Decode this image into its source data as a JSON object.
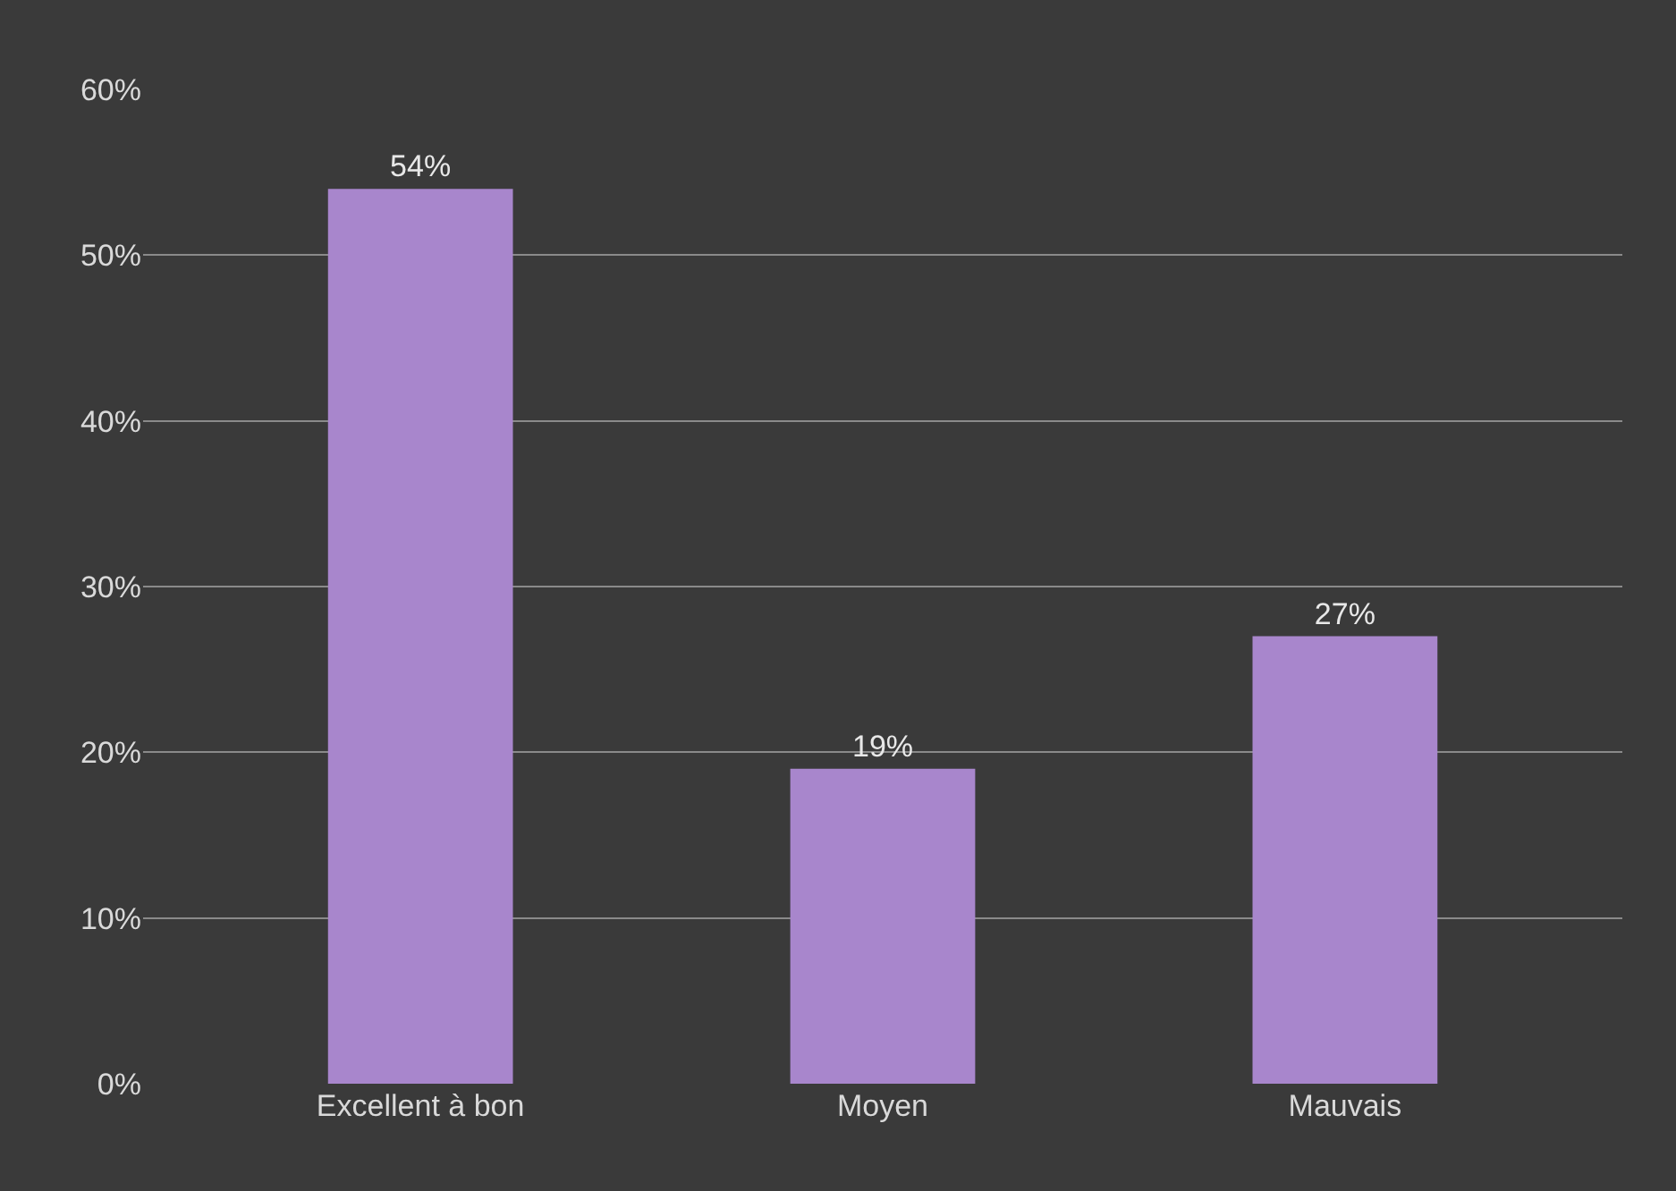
{
  "chart_data": {
    "type": "bar",
    "categories": [
      "Excellent à bon",
      "Moyen",
      "Mauvais"
    ],
    "values": [
      54,
      19,
      27
    ],
    "color": "#a886cc",
    "value_labels": [
      "54%",
      "19%",
      "27%"
    ],
    "ylim": [
      0,
      60
    ],
    "yticks": [
      {
        "value": 0,
        "label": "0%"
      },
      {
        "value": 10,
        "label": "10%"
      },
      {
        "value": 20,
        "label": "20%"
      },
      {
        "value": 30,
        "label": "30%"
      },
      {
        "value": 40,
        "label": "40%"
      },
      {
        "value": 50,
        "label": "50%"
      },
      {
        "value": 60,
        "label": "60%"
      }
    ],
    "grid": "y"
  }
}
